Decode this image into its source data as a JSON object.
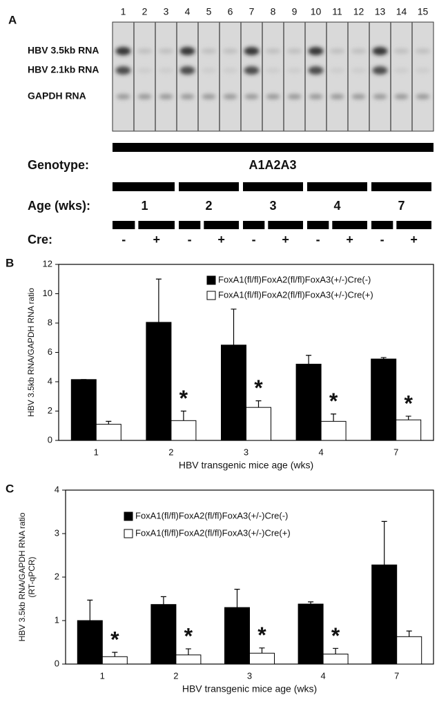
{
  "panel_a": {
    "label": "A",
    "lanes": [
      "1",
      "2",
      "3",
      "4",
      "5",
      "6",
      "7",
      "8",
      "9",
      "10",
      "11",
      "12",
      "13",
      "14",
      "15"
    ],
    "rows": [
      "HBV 3.5kb RNA",
      "HBV 2.1kb RNA",
      "GAPDH RNA"
    ],
    "genotype_label": "Genotype:",
    "genotype": "A1A2A3",
    "age_label": "Age (wks):",
    "ages": [
      "1",
      "2",
      "3",
      "4",
      "7"
    ],
    "cre_label": "Cre:",
    "cre": [
      "-",
      "+",
      "-",
      "+",
      "-",
      "+",
      "-",
      "+",
      "-",
      "+"
    ]
  },
  "chart_data": [
    {
      "type": "bar",
      "panel_label": "B",
      "ylabel": [
        "HBV 3.5kb RNA/GAPDH RNA ratio"
      ],
      "xlabel": "HBV transgenic mice age (wks)",
      "categories": [
        "1",
        "2",
        "3",
        "4",
        "7"
      ],
      "series": [
        {
          "name": "FoxA1(fl/fl)FoxA2(fl/fl)FoxA3(+/-)Cre(-)",
          "color": "#000000",
          "values": [
            4.15,
            8.05,
            6.5,
            5.2,
            5.55
          ],
          "errors": [
            0,
            2.95,
            2.45,
            0.6,
            0.1
          ]
        },
        {
          "name": "FoxA1(fl/fl)FoxA2(fl/fl)FoxA3(+/-)Cre(+)",
          "color": "#ffffff",
          "values": [
            1.1,
            1.35,
            2.25,
            1.3,
            1.4
          ],
          "errors": [
            0.2,
            0.65,
            0.45,
            0.5,
            0.25
          ]
        }
      ],
      "annotations": [
        null,
        "*",
        "*",
        "*",
        "*"
      ],
      "ylim": [
        0,
        12
      ],
      "yticks": [
        0,
        2,
        4,
        6,
        8,
        10,
        12
      ]
    },
    {
      "type": "bar",
      "panel_label": "C",
      "ylabel": [
        "HBV 3.5kb RNA/GAPDH RNA ratio",
        "(RT-qPCR)"
      ],
      "xlabel": "HBV transgenic mice age (wks)",
      "categories": [
        "1",
        "2",
        "3",
        "4",
        "7"
      ],
      "series": [
        {
          "name": "FoxA1(fl/fl)FoxA2(fl/fl)FoxA3(+/-)Cre(-)",
          "color": "#000000",
          "values": [
            1.0,
            1.37,
            1.3,
            1.38,
            2.28
          ],
          "errors": [
            0.47,
            0.18,
            0.42,
            0.05,
            1.0
          ]
        },
        {
          "name": "FoxA1(fl/fl)FoxA2(fl/fl)FoxA3(+/-)Cre(+)",
          "color": "#ffffff",
          "values": [
            0.17,
            0.21,
            0.25,
            0.23,
            0.63
          ],
          "errors": [
            0.1,
            0.14,
            0.12,
            0.13,
            0.13
          ]
        }
      ],
      "annotations": [
        "*",
        "*",
        "*",
        "*",
        null
      ],
      "ylim": [
        0,
        4
      ],
      "yticks": [
        0,
        1,
        2,
        3,
        4
      ]
    }
  ]
}
